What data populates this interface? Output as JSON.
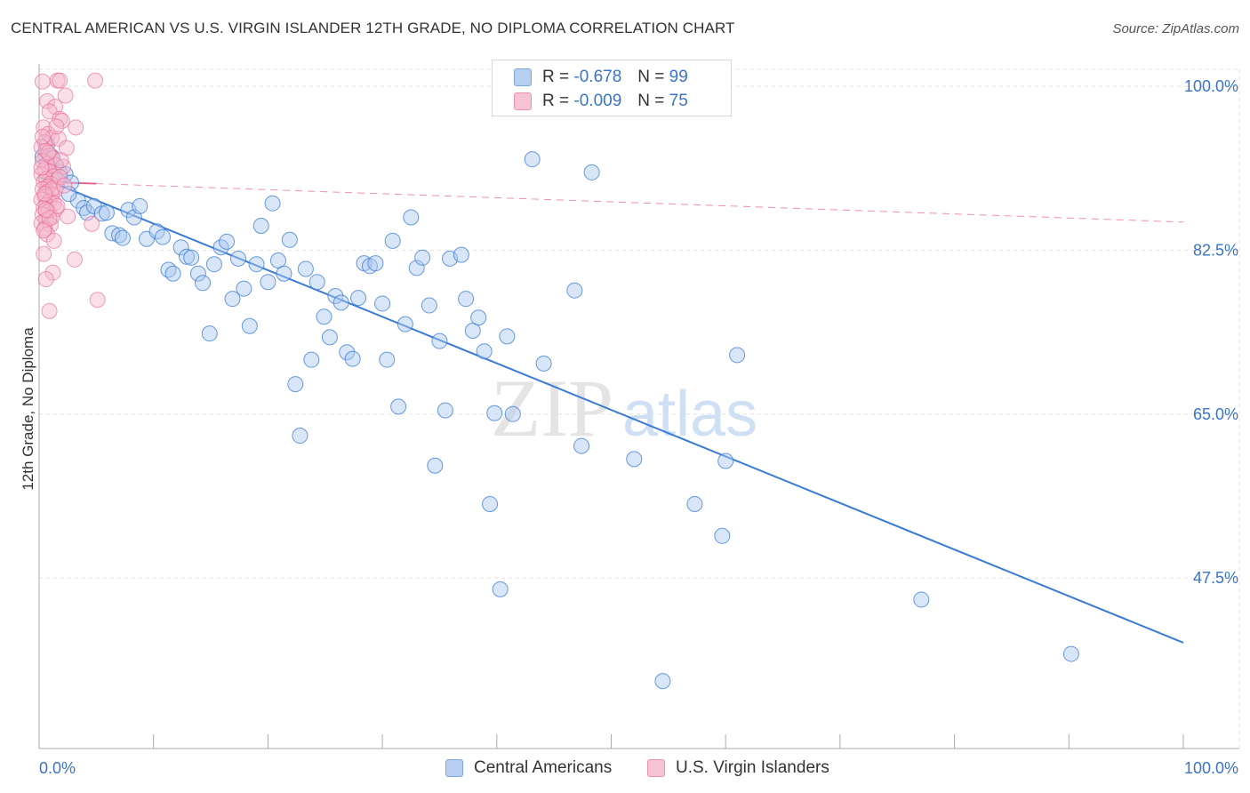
{
  "title": "CENTRAL AMERICAN VS U.S. VIRGIN ISLANDER 12TH GRADE, NO DIPLOMA CORRELATION CHART",
  "source": "Source: ZipAtlas.com",
  "watermark": {
    "zip": "ZIP",
    "atlas": "atlas"
  },
  "legend_top": {
    "blue": {
      "r_label": "R =",
      "r_value": "-0.678",
      "n_label": "N =",
      "n_value": "99"
    },
    "pink": {
      "r_label": "R =",
      "r_value": "-0.009",
      "n_label": "N =",
      "n_value": "75"
    }
  },
  "legend_bottom": {
    "blue": "Central Americans",
    "pink": "U.S. Virgin Islanders"
  },
  "colors": {
    "blue": "#3a7bd5",
    "blue_fill": "#a9c8f0",
    "pink": "#e8608f",
    "pink_fill": "#f5b8cd",
    "tick_text": "#3a73c8",
    "grid": "#e2e2e2"
  },
  "chart_data": {
    "type": "scatter",
    "ylabel": "12th Grade, No Diploma",
    "xlim": [
      0,
      100
    ],
    "ylim": [
      29.3,
      101.8
    ],
    "x_tick_labels": [
      "0.0%",
      "100.0%"
    ],
    "y_ticks": [
      100.0,
      82.5,
      65.0,
      47.5
    ],
    "y_tick_labels": [
      "100.0%",
      "82.5%",
      "65.0%",
      "47.5%"
    ],
    "grid": true,
    "series": [
      {
        "name": "Central Americans",
        "r": -0.678,
        "n": 99,
        "trend": {
          "x": [
            0,
            100
          ],
          "y": [
            90.3,
            40.6
          ]
        },
        "trend_style": "solid",
        "points": [
          [
            0.3,
            92.5
          ],
          [
            0.7,
            93.8
          ],
          [
            1.1,
            92.5
          ],
          [
            1.5,
            91.5
          ],
          [
            1.8,
            90.8
          ],
          [
            2.3,
            90.6
          ],
          [
            2.8,
            89.7
          ],
          [
            3.4,
            87.8
          ],
          [
            3.9,
            87.0
          ],
          [
            4.2,
            86.5
          ],
          [
            4.8,
            87.2
          ],
          [
            5.5,
            86.4
          ],
          [
            5.9,
            86.5
          ],
          [
            6.4,
            84.3
          ],
          [
            7.0,
            84.1
          ],
          [
            7.3,
            83.8
          ],
          [
            7.8,
            86.8
          ],
          [
            8.3,
            86.0
          ],
          [
            8.8,
            87.2
          ],
          [
            9.4,
            83.7
          ],
          [
            10.3,
            84.5
          ],
          [
            10.8,
            83.9
          ],
          [
            11.3,
            80.4
          ],
          [
            11.7,
            80.0
          ],
          [
            12.4,
            82.8
          ],
          [
            12.9,
            81.8
          ],
          [
            13.3,
            81.7
          ],
          [
            13.9,
            80.0
          ],
          [
            14.3,
            79.0
          ],
          [
            14.9,
            73.6
          ],
          [
            15.3,
            81.0
          ],
          [
            15.9,
            82.8
          ],
          [
            16.4,
            83.4
          ],
          [
            16.9,
            77.3
          ],
          [
            17.4,
            81.6
          ],
          [
            17.9,
            78.4
          ],
          [
            18.4,
            74.4
          ],
          [
            19.0,
            81.0
          ],
          [
            19.4,
            85.1
          ],
          [
            20.0,
            79.1
          ],
          [
            20.4,
            87.5
          ],
          [
            20.9,
            81.4
          ],
          [
            21.4,
            80.0
          ],
          [
            21.9,
            83.6
          ],
          [
            22.4,
            68.2
          ],
          [
            22.8,
            62.7
          ],
          [
            23.3,
            80.5
          ],
          [
            23.8,
            70.8
          ],
          [
            24.3,
            79.1
          ],
          [
            24.9,
            75.4
          ],
          [
            25.4,
            73.2
          ],
          [
            25.9,
            77.6
          ],
          [
            26.4,
            76.9
          ],
          [
            26.9,
            71.6
          ],
          [
            27.4,
            70.9
          ],
          [
            27.9,
            77.4
          ],
          [
            28.4,
            81.1
          ],
          [
            28.9,
            80.8
          ],
          [
            29.4,
            81.1
          ],
          [
            30.0,
            76.8
          ],
          [
            30.4,
            70.8
          ],
          [
            30.9,
            83.5
          ],
          [
            31.4,
            65.8
          ],
          [
            32.0,
            74.6
          ],
          [
            32.5,
            86.0
          ],
          [
            33.0,
            80.6
          ],
          [
            33.5,
            81.7
          ],
          [
            34.1,
            76.6
          ],
          [
            34.6,
            59.5
          ],
          [
            35.0,
            72.8
          ],
          [
            35.5,
            65.4
          ],
          [
            35.9,
            81.6
          ],
          [
            36.9,
            82.0
          ],
          [
            37.3,
            77.3
          ],
          [
            37.9,
            73.9
          ],
          [
            38.4,
            75.3
          ],
          [
            38.9,
            71.7
          ],
          [
            39.4,
            55.4
          ],
          [
            39.8,
            65.1
          ],
          [
            40.3,
            46.3
          ],
          [
            40.9,
            73.3
          ],
          [
            41.4,
            65.0
          ],
          [
            43.1,
            92.2
          ],
          [
            44.1,
            70.4
          ],
          [
            46.8,
            78.2
          ],
          [
            47.4,
            61.6
          ],
          [
            48.3,
            90.8
          ],
          [
            49.0,
            99.8
          ],
          [
            52.0,
            60.2
          ],
          [
            54.5,
            36.5
          ],
          [
            57.3,
            55.4
          ],
          [
            59.7,
            52.0
          ],
          [
            60.0,
            60.0
          ],
          [
            61.0,
            71.3
          ],
          [
            77.1,
            45.2
          ],
          [
            90.2,
            39.4
          ],
          [
            2.6,
            88.5
          ]
        ]
      },
      {
        "name": "U.S. Virgin Islanders",
        "r": -0.009,
        "n": 75,
        "trend": {
          "x": [
            0,
            5
          ],
          "y": [
            89.8,
            89.6
          ]
        },
        "trend_style": "solid",
        "trend_ext": {
          "x": [
            5,
            100
          ],
          "y": [
            89.6,
            85.5
          ]
        },
        "points": [
          [
            0.3,
            100.5
          ],
          [
            1.6,
            100.6
          ],
          [
            4.9,
            100.6
          ],
          [
            1.8,
            100.6
          ],
          [
            0.7,
            98.4
          ],
          [
            1.4,
            97.8
          ],
          [
            2.3,
            99.0
          ],
          [
            0.9,
            97.3
          ],
          [
            1.8,
            96.5
          ],
          [
            2.0,
            96.3
          ],
          [
            3.2,
            95.6
          ],
          [
            0.4,
            95.6
          ],
          [
            0.8,
            94.9
          ],
          [
            1.1,
            94.5
          ],
          [
            0.5,
            94.0
          ],
          [
            0.2,
            93.5
          ],
          [
            0.6,
            93.1
          ],
          [
            0.9,
            92.6
          ],
          [
            1.2,
            92.3
          ],
          [
            0.3,
            92.0
          ],
          [
            0.7,
            91.7
          ],
          [
            1.4,
            91.6
          ],
          [
            2.1,
            91.4
          ],
          [
            0.5,
            91.1
          ],
          [
            0.9,
            90.9
          ],
          [
            0.2,
            90.6
          ],
          [
            1.3,
            90.4
          ],
          [
            0.6,
            90.1
          ],
          [
            1.6,
            90.0
          ],
          [
            0.4,
            89.8
          ],
          [
            1.0,
            89.6
          ],
          [
            0.8,
            89.3
          ],
          [
            0.3,
            89.0
          ],
          [
            1.4,
            88.9
          ],
          [
            0.7,
            88.7
          ],
          [
            1.1,
            88.4
          ],
          [
            0.5,
            88.2
          ],
          [
            0.2,
            87.9
          ],
          [
            0.9,
            87.7
          ],
          [
            1.3,
            87.5
          ],
          [
            0.6,
            87.3
          ],
          [
            0.4,
            87.0
          ],
          [
            1.5,
            86.9
          ],
          [
            0.8,
            86.6
          ],
          [
            0.3,
            86.3
          ],
          [
            1.1,
            86.0
          ],
          [
            2.5,
            86.1
          ],
          [
            0.6,
            85.7
          ],
          [
            0.2,
            85.4
          ],
          [
            1.0,
            85.2
          ],
          [
            4.6,
            85.3
          ],
          [
            0.5,
            84.8
          ],
          [
            0.7,
            84.2
          ],
          [
            1.3,
            83.5
          ],
          [
            0.4,
            82.1
          ],
          [
            3.1,
            81.5
          ],
          [
            1.2,
            80.1
          ],
          [
            0.6,
            79.4
          ],
          [
            5.1,
            77.2
          ],
          [
            0.9,
            76.0
          ],
          [
            0.3,
            94.6
          ],
          [
            1.7,
            94.4
          ],
          [
            1.5,
            95.7
          ],
          [
            2.4,
            93.4
          ],
          [
            0.8,
            92.9
          ],
          [
            1.9,
            92.1
          ],
          [
            0.2,
            91.3
          ],
          [
            1.2,
            89.1
          ],
          [
            0.5,
            88.5
          ],
          [
            1.6,
            87.2
          ],
          [
            0.9,
            85.9
          ],
          [
            0.4,
            84.6
          ],
          [
            1.8,
            90.3
          ],
          [
            2.2,
            89.4
          ],
          [
            0.6,
            86.8
          ]
        ]
      }
    ]
  }
}
